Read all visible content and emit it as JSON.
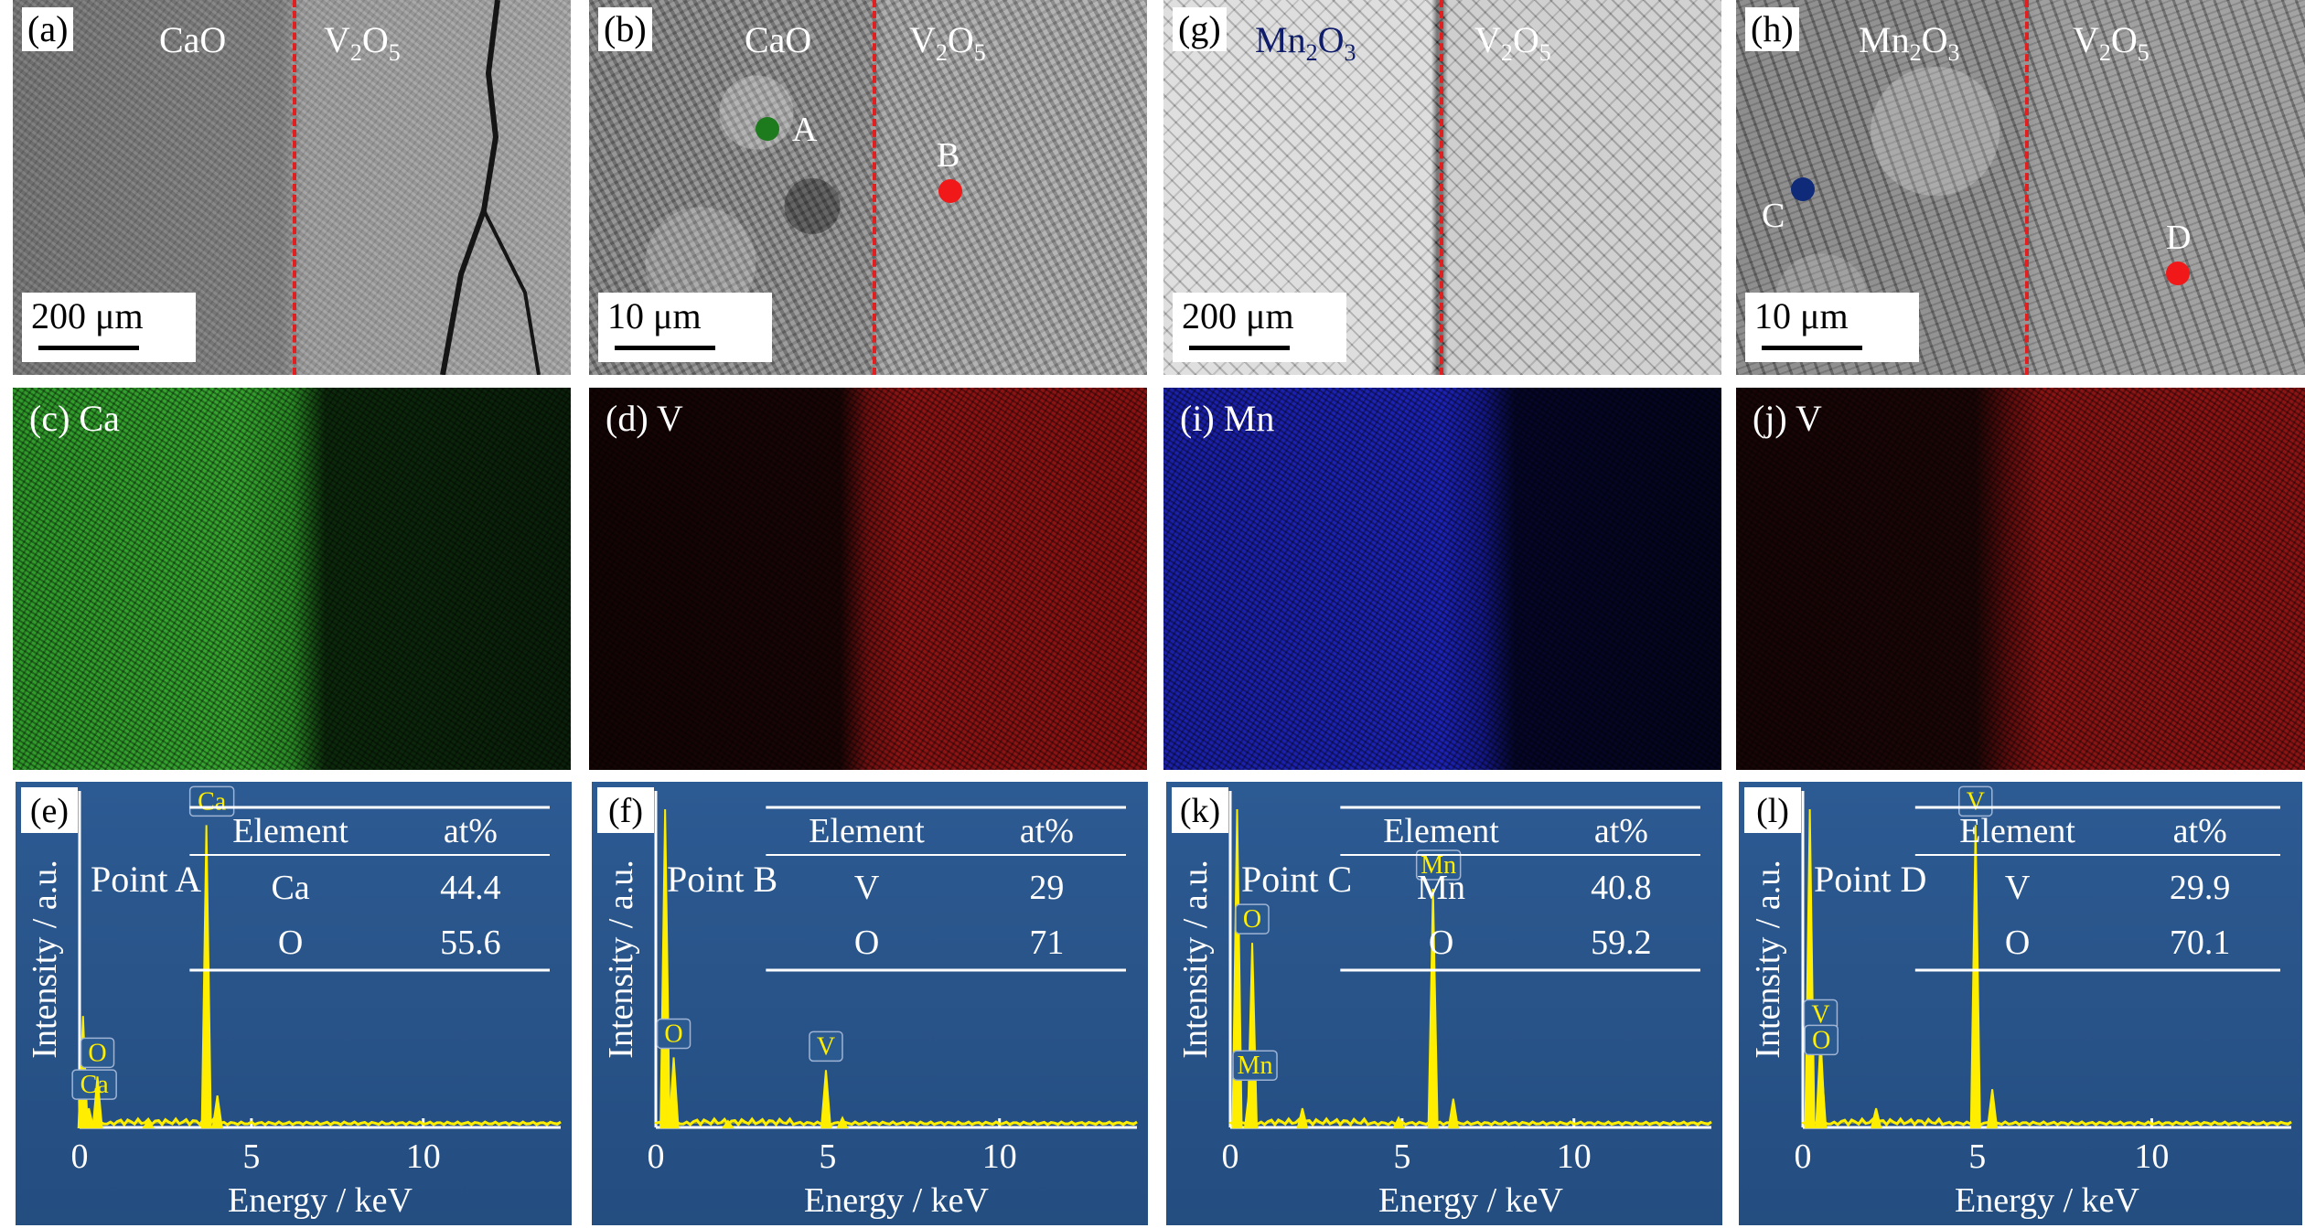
{
  "sem_panels": [
    {
      "id": "a",
      "label": "(a)",
      "left_material": "CaO",
      "right_material": "V2O5",
      "scale": "200 μm"
    },
    {
      "id": "b",
      "label": "(b)",
      "left_material": "CaO",
      "right_material": "V2O5",
      "scale": "10 μm",
      "points": [
        "A",
        "B"
      ]
    },
    {
      "id": "g",
      "label": "(g)",
      "left_material": "Mn2O3",
      "right_material": "V2O5",
      "scale": "200 μm"
    },
    {
      "id": "h",
      "label": "(h)",
      "left_material": "Mn2O3",
      "right_material": "V2O5",
      "scale": "10 μm",
      "points": [
        "C",
        "D"
      ]
    }
  ],
  "map_panels": [
    {
      "id": "c",
      "label": "(c) Ca",
      "color": "#2fa02a"
    },
    {
      "id": "d",
      "label": "(d) V",
      "color": "#8d1414"
    },
    {
      "id": "i",
      "label": "(i) Mn",
      "color": "#1c22b5"
    },
    {
      "id": "j",
      "label": "(j) V",
      "color": "#8d1414"
    }
  ],
  "point_colors": {
    "A": "#1d7a1d",
    "B": "#f01818",
    "C": "#0f2a78",
    "D": "#f01818"
  },
  "eds_panels": [
    {
      "id": "e",
      "label": "(e)",
      "point": "Point A",
      "table": {
        "header": [
          "Element",
          "at%"
        ],
        "rows": [
          [
            "Ca",
            "44.4"
          ],
          [
            "O",
            "55.6"
          ]
        ]
      },
      "peaks": [
        {
          "x": 0.27,
          "h": 0.06,
          "label": "Ca"
        },
        {
          "x": 0.52,
          "h": 0.16,
          "label": "O"
        },
        {
          "x": 3.69,
          "h": 0.95,
          "label": "Ca"
        },
        {
          "x": 4.01,
          "h": 0.1
        }
      ],
      "extra_peaks": [
        {
          "x": 0.1,
          "h": 0.35
        },
        {
          "x": 2.0,
          "h": 0.02
        }
      ]
    },
    {
      "id": "f",
      "label": "(f)",
      "point": "Point B",
      "table": {
        "header": [
          "Element",
          "at%"
        ],
        "rows": [
          [
            "V",
            "29"
          ],
          [
            "O",
            "71"
          ]
        ]
      },
      "peaks": [
        {
          "x": 0.52,
          "h": 0.22,
          "label": "O"
        },
        {
          "x": 4.95,
          "h": 0.18,
          "label": "V"
        },
        {
          "x": 5.43,
          "h": 0.03
        }
      ],
      "extra_peaks": [
        {
          "x": 0.27,
          "h": 1.0
        },
        {
          "x": 2.1,
          "h": 0.02
        }
      ]
    },
    {
      "id": "k",
      "label": "(k)",
      "point": "Point C",
      "table": {
        "header": [
          "Element",
          "at%"
        ],
        "rows": [
          [
            "Mn",
            "40.8"
          ],
          [
            "O",
            "59.2"
          ]
        ]
      },
      "peaks": [
        {
          "x": 0.64,
          "h": 0.58,
          "label": "O"
        },
        {
          "x": 0.56,
          "h": 0.12,
          "label": "Mn"
        },
        {
          "x": 5.9,
          "h": 0.75,
          "label": "Mn"
        },
        {
          "x": 6.49,
          "h": 0.09
        }
      ],
      "extra_peaks": [
        {
          "x": 0.2,
          "h": 1.0
        },
        {
          "x": 2.1,
          "h": 0.06
        },
        {
          "x": 4.9,
          "h": 0.03
        }
      ]
    },
    {
      "id": "l",
      "label": "(l)",
      "point": "Point D",
      "table": {
        "header": [
          "Element",
          "at%"
        ],
        "rows": [
          [
            "V",
            "29.9"
          ],
          [
            "O",
            "70.1"
          ]
        ]
      },
      "peaks": [
        {
          "x": 0.51,
          "h": 0.28,
          "label": "V"
        },
        {
          "x": 0.53,
          "h": 0.2,
          "label": "O"
        },
        {
          "x": 4.95,
          "h": 0.95,
          "label": "V"
        },
        {
          "x": 5.43,
          "h": 0.12
        }
      ],
      "extra_peaks": [
        {
          "x": 0.2,
          "h": 1.0
        },
        {
          "x": 2.1,
          "h": 0.06
        }
      ]
    }
  ],
  "chart_data": {
    "type": "line",
    "xlabel": "Energy / keV",
    "ylabel": "Intensity / a.u.",
    "xlim": [
      0,
      14
    ],
    "xticks": [
      0,
      5,
      10
    ]
  }
}
